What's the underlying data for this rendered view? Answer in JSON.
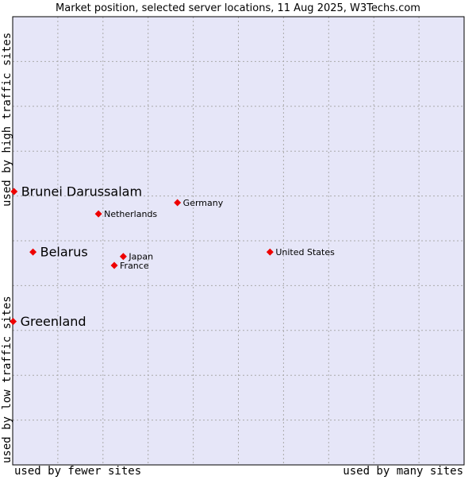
{
  "chart_data": {
    "type": "scatter",
    "title": "Market position, selected server locations, 11 Aug 2025, W3Techs.com",
    "xlabel_left": "used by fewer sites",
    "xlabel_right": "used by many sites",
    "ylabel_bottom": "used by low traffic sites",
    "ylabel_top": "used by high traffic sites",
    "grid": true,
    "xlim": [
      0,
      100
    ],
    "ylim": [
      0,
      100
    ],
    "points": [
      {
        "label": "Brunei Darussalam",
        "x": 0.3,
        "y": 61.0,
        "highlight": true
      },
      {
        "label": "Belarus",
        "x": 4.5,
        "y": 47.5,
        "highlight": true
      },
      {
        "label": "Greenland",
        "x": 0.1,
        "y": 32.0,
        "highlight": true
      },
      {
        "label": "Germany",
        "x": 36.5,
        "y": 58.5,
        "highlight": false
      },
      {
        "label": "Netherlands",
        "x": 19.0,
        "y": 56.0,
        "highlight": false
      },
      {
        "label": "Japan",
        "x": 24.5,
        "y": 46.5,
        "highlight": false
      },
      {
        "label": "France",
        "x": 22.5,
        "y": 44.5,
        "highlight": false
      },
      {
        "label": "United States",
        "x": 57.0,
        "y": 47.5,
        "highlight": false
      }
    ]
  },
  "colors": {
    "plot_background": "#e6e6f8",
    "grid": "#aaaaaa",
    "marker": "#ee0000",
    "text": "#000000"
  }
}
